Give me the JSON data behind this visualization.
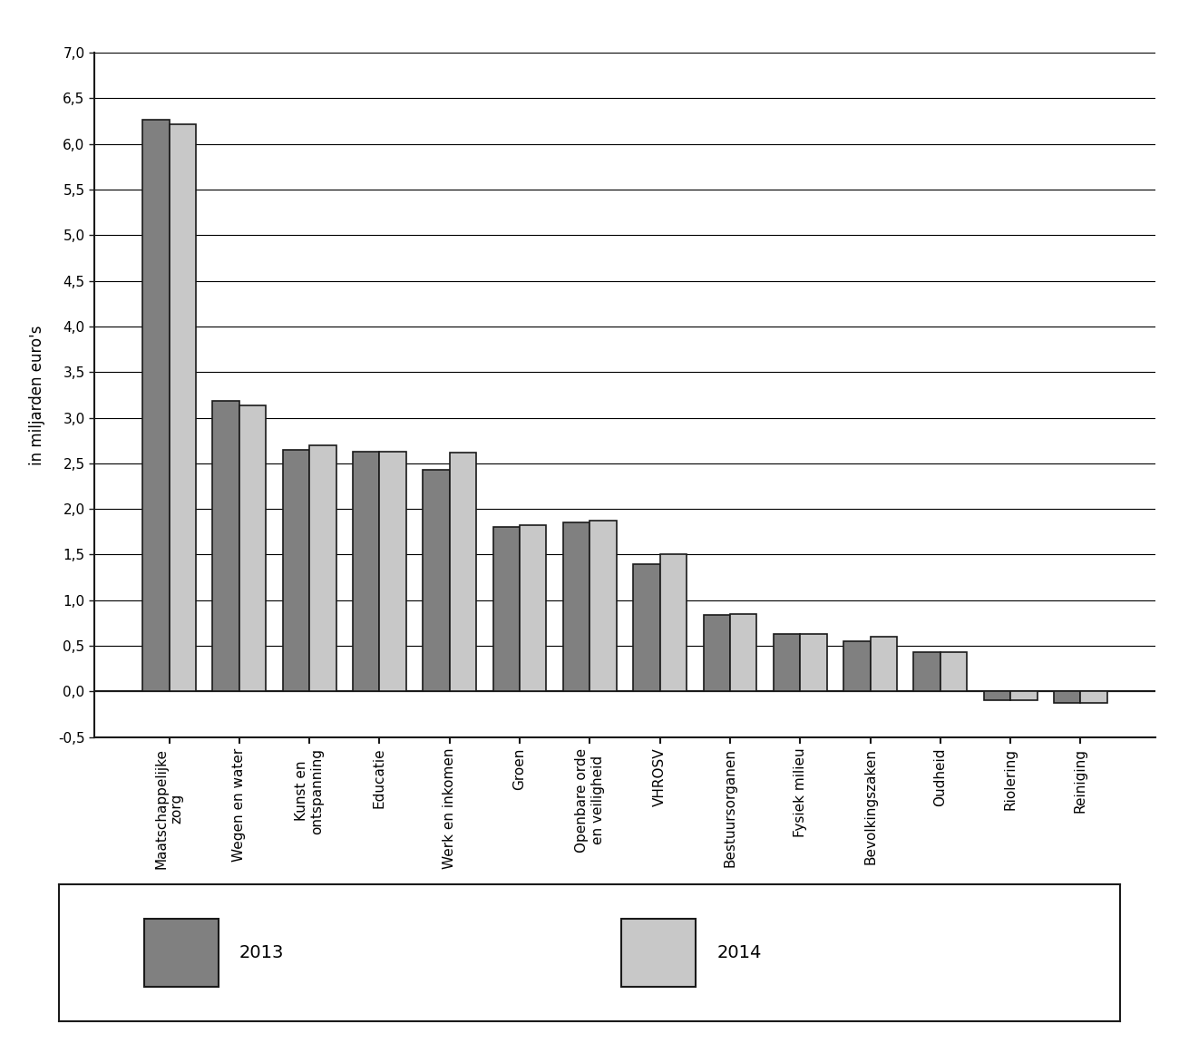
{
  "categories": [
    "Maatschappelijke\nzorg",
    "Wegen en water",
    "Kunst en\nontspanning",
    "Educatie",
    "Werk en inkomen",
    "Groen",
    "Openbare orde\nen veiligheid",
    "VHROSV",
    "Bestuursorganen",
    "Fysiek milieu",
    "Bevolkingszaken",
    "Oudheid",
    "Riolering",
    "Reiniging"
  ],
  "values_2013": [
    6.27,
    3.18,
    2.65,
    2.63,
    2.43,
    1.8,
    1.85,
    1.4,
    0.84,
    0.63,
    0.55,
    0.43,
    -0.1,
    -0.13
  ],
  "values_2014": [
    6.22,
    3.13,
    2.7,
    2.63,
    2.62,
    1.82,
    1.87,
    1.5,
    0.85,
    0.63,
    0.6,
    0.43,
    -0.1,
    -0.13
  ],
  "color_2013": "#808080",
  "color_2014": "#c8c8c8",
  "ylabel": "in miljarden euro's",
  "ylim_min": -0.5,
  "ylim_max": 7.0,
  "yticks": [
    -0.5,
    0.0,
    0.5,
    1.0,
    1.5,
    2.0,
    2.5,
    3.0,
    3.5,
    4.0,
    4.5,
    5.0,
    5.5,
    6.0,
    6.5,
    7.0
  ],
  "ytick_labels": [
    "-0,5",
    "0,0",
    "0,5",
    "1,0",
    "1,5",
    "2,0",
    "2,5",
    "3,0",
    "3,5",
    "4,0",
    "4,5",
    "5,0",
    "5,5",
    "6,0",
    "6,5",
    "7,0"
  ],
  "legend_label_2013": "2013",
  "legend_label_2014": "2014",
  "bar_width": 0.38,
  "background_color": "#ffffff",
  "grid_color": "#000000",
  "edge_color": "#1a1a1a"
}
